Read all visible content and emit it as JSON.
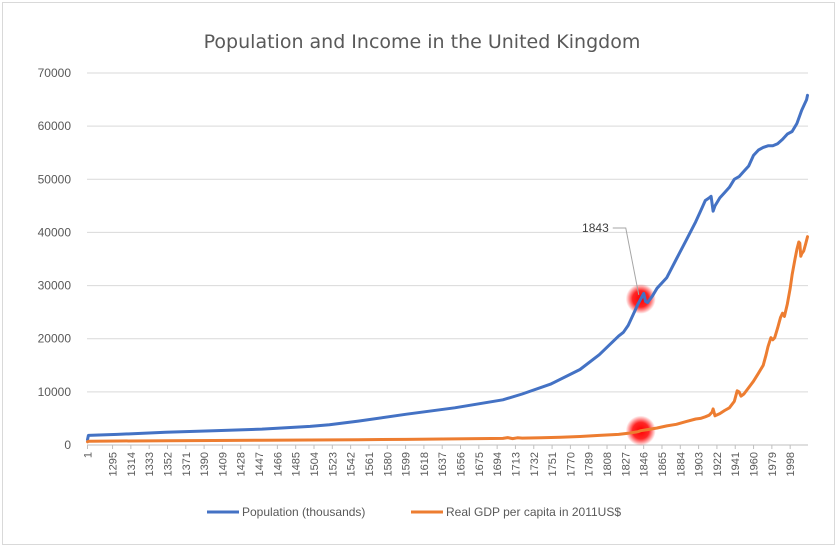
{
  "chart_data": {
    "type": "line",
    "title": "Population and Income in the United Kingdom",
    "xlabel": "",
    "ylabel": "",
    "ylim": [
      0,
      70000
    ],
    "y_ticks": [
      0,
      10000,
      20000,
      30000,
      40000,
      50000,
      60000,
      70000
    ],
    "y_tick_labels": [
      "0",
      "10000",
      "20000",
      "30000",
      "40000",
      "50000",
      "60000",
      "70000"
    ],
    "x_tick_labels": [
      "1",
      "1295",
      "1314",
      "1333",
      "1352",
      "1371",
      "1390",
      "1409",
      "1428",
      "1447",
      "1466",
      "1485",
      "1504",
      "1523",
      "1542",
      "1561",
      "1580",
      "1599",
      "1618",
      "1637",
      "1656",
      "1675",
      "1694",
      "1713",
      "1732",
      "1751",
      "1770",
      "1789",
      "1808",
      "1827",
      "1846",
      "1865",
      "1884",
      "1903",
      "1922",
      "1941",
      "1960",
      "1979",
      "1998"
    ],
    "grid": true,
    "legend_position": "bottom",
    "colors": {
      "population": "#4472c4",
      "gdp": "#ed7d31",
      "highlight": "#ff0000",
      "grid": "#d9d9d9",
      "text": "#595959"
    },
    "annotation": {
      "text": "1843",
      "year": 1843
    },
    "highlights": [
      {
        "series": "population",
        "year": 1843,
        "value": 27500
      },
      {
        "series": "gdp",
        "year": 1843,
        "value": 2700
      }
    ],
    "series": [
      {
        "name": "Population (thousands)",
        "points": [
          [
            1,
            1000
          ],
          [
            1270,
            1800
          ],
          [
            1300,
            2000
          ],
          [
            1350,
            2400
          ],
          [
            1400,
            2700
          ],
          [
            1450,
            3000
          ],
          [
            1500,
            3500
          ],
          [
            1520,
            3800
          ],
          [
            1550,
            4500
          ],
          [
            1600,
            5800
          ],
          [
            1650,
            7000
          ],
          [
            1700,
            8500
          ],
          [
            1720,
            9600
          ],
          [
            1750,
            11500
          ],
          [
            1780,
            14200
          ],
          [
            1800,
            17000
          ],
          [
            1820,
            20500
          ],
          [
            1825,
            21200
          ],
          [
            1830,
            22500
          ],
          [
            1835,
            24500
          ],
          [
            1840,
            26500
          ],
          [
            1843,
            27500
          ],
          [
            1846,
            28500
          ],
          [
            1848,
            27000
          ],
          [
            1850,
            26800
          ],
          [
            1855,
            28000
          ],
          [
            1860,
            29500
          ],
          [
            1870,
            31500
          ],
          [
            1880,
            35000
          ],
          [
            1890,
            38500
          ],
          [
            1900,
            42000
          ],
          [
            1905,
            44000
          ],
          [
            1910,
            46000
          ],
          [
            1914,
            46500
          ],
          [
            1916,
            46800
          ],
          [
            1918,
            44000
          ],
          [
            1920,
            45000
          ],
          [
            1925,
            46500
          ],
          [
            1930,
            47500
          ],
          [
            1935,
            48500
          ],
          [
            1940,
            50000
          ],
          [
            1945,
            50500
          ],
          [
            1950,
            51500
          ],
          [
            1955,
            52500
          ],
          [
            1960,
            54500
          ],
          [
            1965,
            55500
          ],
          [
            1970,
            56000
          ],
          [
            1975,
            56300
          ],
          [
            1980,
            56300
          ],
          [
            1985,
            56700
          ],
          [
            1990,
            57500
          ],
          [
            1995,
            58500
          ],
          [
            2000,
            59000
          ],
          [
            2005,
            60500
          ],
          [
            2010,
            63000
          ],
          [
            2015,
            65000
          ],
          [
            2016,
            65800
          ]
        ]
      },
      {
        "name": "Real GDP per capita in 2011US$",
        "points": [
          [
            1,
            600
          ],
          [
            1270,
            700
          ],
          [
            1300,
            750
          ],
          [
            1350,
            800
          ],
          [
            1400,
            850
          ],
          [
            1450,
            900
          ],
          [
            1500,
            950
          ],
          [
            1550,
            1000
          ],
          [
            1600,
            1050
          ],
          [
            1650,
            1150
          ],
          [
            1700,
            1250
          ],
          [
            1705,
            1400
          ],
          [
            1710,
            1200
          ],
          [
            1715,
            1350
          ],
          [
            1720,
            1300
          ],
          [
            1740,
            1350
          ],
          [
            1760,
            1450
          ],
          [
            1780,
            1600
          ],
          [
            1800,
            1800
          ],
          [
            1820,
            2000
          ],
          [
            1830,
            2200
          ],
          [
            1840,
            2500
          ],
          [
            1843,
            2700
          ],
          [
            1850,
            2900
          ],
          [
            1860,
            3200
          ],
          [
            1870,
            3600
          ],
          [
            1880,
            3900
          ],
          [
            1890,
            4400
          ],
          [
            1900,
            4900
          ],
          [
            1905,
            5000
          ],
          [
            1910,
            5300
          ],
          [
            1914,
            5600
          ],
          [
            1917,
            6200
          ],
          [
            1918,
            6800
          ],
          [
            1920,
            5500
          ],
          [
            1925,
            5900
          ],
          [
            1930,
            6500
          ],
          [
            1935,
            7000
          ],
          [
            1940,
            8200
          ],
          [
            1943,
            10200
          ],
          [
            1945,
            10000
          ],
          [
            1947,
            9200
          ],
          [
            1950,
            9600
          ],
          [
            1955,
            10800
          ],
          [
            1960,
            12000
          ],
          [
            1965,
            13500
          ],
          [
            1970,
            15000
          ],
          [
            1973,
            17000
          ],
          [
            1975,
            18500
          ],
          [
            1978,
            20200
          ],
          [
            1980,
            19800
          ],
          [
            1982,
            20200
          ],
          [
            1985,
            22000
          ],
          [
            1988,
            24000
          ],
          [
            1990,
            24800
          ],
          [
            1992,
            24200
          ],
          [
            1995,
            26500
          ],
          [
            1998,
            29500
          ],
          [
            2000,
            32000
          ],
          [
            2003,
            35000
          ],
          [
            2005,
            36800
          ],
          [
            2007,
            38200
          ],
          [
            2008,
            38000
          ],
          [
            2009,
            35500
          ],
          [
            2010,
            36000
          ],
          [
            2012,
            36500
          ],
          [
            2014,
            37800
          ],
          [
            2016,
            39200
          ]
        ]
      }
    ]
  }
}
